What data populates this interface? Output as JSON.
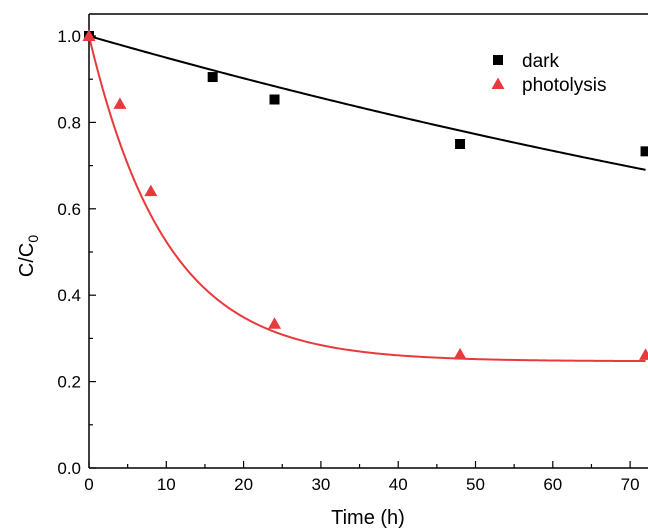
{
  "chart_data": {
    "type": "scatter",
    "xlabel": "Time (h)",
    "ylabel_main": "C/C",
    "ylabel_sub": "0",
    "xlim": [
      0,
      72
    ],
    "ylim": [
      0,
      1.05
    ],
    "xticks": [
      0,
      10,
      20,
      30,
      40,
      50,
      60,
      70
    ],
    "xtick_labels": [
      "0",
      "10",
      "20",
      "30",
      "40",
      "50",
      "60",
      "70"
    ],
    "yticks": [
      0.0,
      0.2,
      0.4,
      0.6,
      0.8,
      1.0
    ],
    "ytick_labels": [
      "0.0",
      "0.2",
      "0.4",
      "0.6",
      "0.8",
      "1.0"
    ],
    "grid": false,
    "legend_position": "top-right",
    "series": [
      {
        "name": "dark",
        "marker": "square",
        "color": "#000000",
        "x": [
          0,
          16,
          24,
          48,
          72
        ],
        "y": [
          1.0,
          0.905,
          0.853,
          0.75,
          0.733
        ],
        "fit": {
          "model": "exponential",
          "c0": 1.0,
          "k": 0.00515,
          "c_inf": 0.0
        }
      },
      {
        "name": "photolysis",
        "marker": "triangle",
        "color": "#e8393c",
        "x": [
          0,
          4,
          8,
          24,
          48,
          72
        ],
        "y": [
          1.0,
          0.843,
          0.641,
          0.334,
          0.263,
          0.262
        ],
        "fit": {
          "model": "exponential",
          "c0": 1.0,
          "k": 0.1,
          "c_inf": 0.247
        }
      }
    ]
  }
}
